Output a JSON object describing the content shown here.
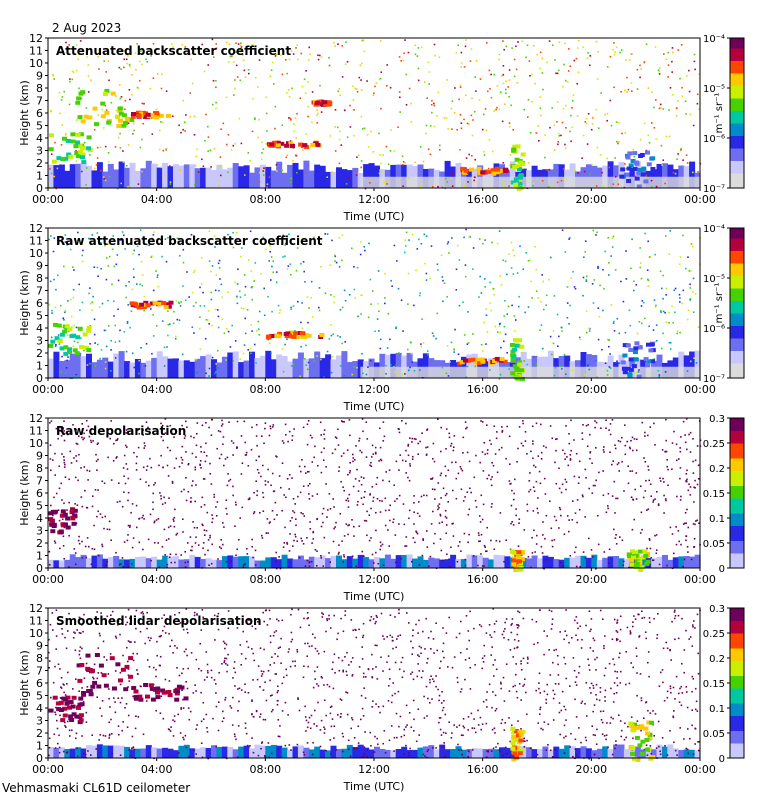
{
  "date": "2 Aug 2023",
  "footer": "Vehmasmaki CL61D ceilometer",
  "colors": {
    "scale": [
      "#dcdcdc",
      "#c8c8ff",
      "#6e6ef0",
      "#2828e6",
      "#008cc8",
      "#00c8a0",
      "#46d200",
      "#c8f000",
      "#ffc800",
      "#ff4600",
      "#b4003c",
      "#6e005a"
    ]
  },
  "chart_data": [
    {
      "type": "heatmap",
      "title": "Attenuated backscatter coefficient",
      "xlabel": "Time (UTC)",
      "ylabel": "Height (km)",
      "x_ticks": [
        "00:00",
        "04:00",
        "08:00",
        "12:00",
        "16:00",
        "20:00",
        "00:00"
      ],
      "y_ticks": [
        "0",
        "1",
        "2",
        "3",
        "4",
        "5",
        "6",
        "7",
        "8",
        "9",
        "10",
        "11",
        "12"
      ],
      "ylim": [
        0,
        12
      ],
      "colorbar": {
        "scale": "log",
        "ticks": [
          "10⁻⁷",
          "10⁻⁶",
          "10⁻⁵",
          "10⁻⁴"
        ],
        "unit": "m⁻¹ sr⁻¹"
      },
      "layers": [
        {
          "t0": 0.0,
          "t1": 1.5,
          "h0": 2.0,
          "h1": 4.6,
          "level": 6
        },
        {
          "t0": 1.0,
          "t1": 3.0,
          "h0": 5.0,
          "h1": 8.0,
          "level": 7
        },
        {
          "t0": 3.0,
          "t1": 4.5,
          "h0": 5.8,
          "h1": 6.2,
          "level": 9
        },
        {
          "t0": 8.0,
          "t1": 10.0,
          "h0": 3.4,
          "h1": 3.8,
          "level": 9
        },
        {
          "t0": 9.7,
          "t1": 10.3,
          "h0": 6.8,
          "h1": 7.1,
          "level": 9
        },
        {
          "t0": 15.0,
          "t1": 16.8,
          "h0": 1.3,
          "h1": 1.7,
          "level": 9
        },
        {
          "t0": 17.0,
          "t1": 17.4,
          "h0": 0.0,
          "h1": 3.5,
          "level": 6
        },
        {
          "t0": 21.0,
          "t1": 22.2,
          "h0": 0.2,
          "h1": 3.0,
          "level": 3
        }
      ],
      "boundary_layer_top_km": 2.0,
      "scatter_level": 8
    },
    {
      "type": "heatmap",
      "title": "Raw attenuated backscatter coefficient",
      "xlabel": "Time (UTC)",
      "ylabel": "Height (km)",
      "x_ticks": [
        "00:00",
        "04:00",
        "08:00",
        "12:00",
        "16:00",
        "20:00",
        "00:00"
      ],
      "y_ticks": [
        "0",
        "1",
        "2",
        "3",
        "4",
        "5",
        "6",
        "7",
        "8",
        "9",
        "10",
        "11",
        "12"
      ],
      "ylim": [
        0,
        12
      ],
      "colorbar": {
        "scale": "log",
        "ticks": [
          "10⁻⁷",
          "10⁻⁶",
          "10⁻⁵",
          "10⁻⁴"
        ],
        "unit": "m⁻¹ sr⁻¹"
      },
      "layers": [
        {
          "t0": 0.0,
          "t1": 1.5,
          "h0": 2.0,
          "h1": 4.6,
          "level": 6
        },
        {
          "t0": 3.0,
          "t1": 4.5,
          "h0": 5.8,
          "h1": 6.2,
          "level": 9
        },
        {
          "t0": 8.0,
          "t1": 10.0,
          "h0": 3.4,
          "h1": 3.8,
          "level": 9
        },
        {
          "t0": 15.0,
          "t1": 16.8,
          "h0": 1.3,
          "h1": 1.7,
          "level": 9
        },
        {
          "t0": 17.0,
          "t1": 17.4,
          "h0": 0.0,
          "h1": 3.5,
          "level": 6
        },
        {
          "t0": 21.0,
          "t1": 22.2,
          "h0": 0.2,
          "h1": 3.0,
          "level": 3
        }
      ],
      "boundary_layer_top_km": 2.0,
      "scatter_level": 4
    },
    {
      "type": "heatmap",
      "title": "Raw depolarisation",
      "xlabel": "Time (UTC)",
      "ylabel": "Height (km)",
      "x_ticks": [
        "00:00",
        "04:00",
        "08:00",
        "12:00",
        "16:00",
        "20:00",
        "00:00"
      ],
      "y_ticks": [
        "0",
        "1",
        "2",
        "3",
        "4",
        "5",
        "6",
        "7",
        "8",
        "9",
        "10",
        "11",
        "12"
      ],
      "ylim": [
        0,
        12
      ],
      "colorbar": {
        "scale": "linear",
        "range": [
          0,
          0.3
        ],
        "ticks": [
          "0",
          "0.05",
          "0.1",
          "0.15",
          "0.2",
          "0.25",
          "0.3"
        ]
      },
      "layers": [
        {
          "t0": 0.0,
          "t1": 1.0,
          "h0": 3.0,
          "h1": 5.0,
          "level": 11
        },
        {
          "t0": 17.0,
          "t1": 17.4,
          "h0": 0.0,
          "h1": 1.5,
          "level": 8
        },
        {
          "t0": 21.3,
          "t1": 22.0,
          "h0": 0.0,
          "h1": 1.5,
          "level": 7
        }
      ],
      "boundary_layer_top_km": 1.0,
      "scatter_level": 11
    },
    {
      "type": "heatmap",
      "title": "Smoothed lidar depolarisation",
      "xlabel": "Time (UTC)",
      "ylabel": "Height (km)",
      "x_ticks": [
        "00:00",
        "04:00",
        "08:00",
        "12:00",
        "16:00",
        "20:00",
        "00:00"
      ],
      "y_ticks": [
        "0",
        "1",
        "2",
        "3",
        "4",
        "5",
        "6",
        "7",
        "8",
        "9",
        "10",
        "11",
        "12"
      ],
      "ylim": [
        0,
        12
      ],
      "colorbar": {
        "scale": "linear",
        "range": [
          0,
          0.3
        ],
        "ticks": [
          "0",
          "0.05",
          "0.1",
          "0.15",
          "0.2",
          "0.25",
          "0.3"
        ]
      },
      "layers": [
        {
          "t0": 0.0,
          "t1": 1.2,
          "h0": 3.0,
          "h1": 5.0,
          "level": 11
        },
        {
          "t0": 1.0,
          "t1": 3.0,
          "h0": 5.0,
          "h1": 8.5,
          "level": 11
        },
        {
          "t0": 3.0,
          "t1": 5.0,
          "h0": 4.8,
          "h1": 6.0,
          "level": 11
        },
        {
          "t0": 17.0,
          "t1": 17.4,
          "h0": 0.0,
          "h1": 2.5,
          "level": 8
        },
        {
          "t0": 21.3,
          "t1": 22.2,
          "h0": 0.0,
          "h1": 3.0,
          "level": 7
        }
      ],
      "boundary_layer_top_km": 1.0,
      "scatter_level": 11
    }
  ]
}
